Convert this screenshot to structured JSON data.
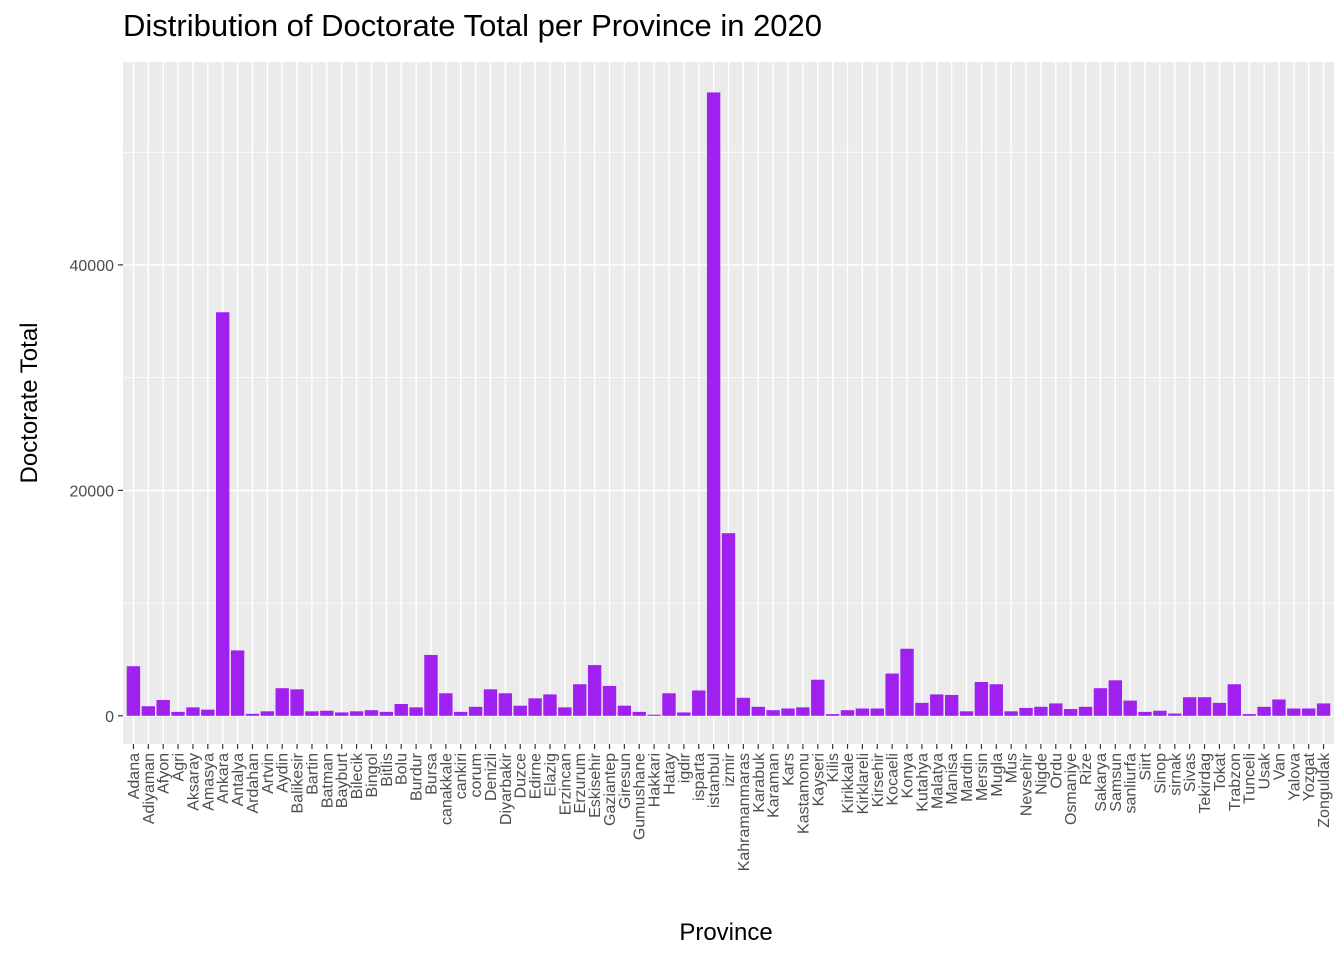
{
  "chart_data": {
    "type": "bar",
    "title": "Distribution of Doctorate Total per Province in 2020",
    "xlabel": "Province",
    "ylabel": "Doctorate Total",
    "ylim": [
      -2500,
      58000
    ],
    "yticks": [
      0,
      20000,
      40000
    ],
    "ytick_labels": [
      "0",
      "20000",
      "40000"
    ],
    "bar_color": "#a020f0",
    "panel_color": "#ebebeb",
    "grid_color": "#ffffff",
    "grid": true,
    "legend": "none",
    "categories": [
      "Adana",
      "Adiyaman",
      "Afyon",
      "Agri",
      "Aksaray",
      "Amasya",
      "Ankara",
      "Antalya",
      "Ardahan",
      "Artvin",
      "Aydin",
      "Balikesir",
      "Bartin",
      "Batman",
      "Bayburt",
      "Bilecik",
      "Bingol",
      "Bitlis",
      "Bolu",
      "Burdur",
      "Bursa",
      "canakkale",
      "cankiri",
      "corum",
      "Denizli",
      "Diyarbakir",
      "Duzce",
      "Edirne",
      "Elazig",
      "Erzincan",
      "Erzurum",
      "Eskisehir",
      "Gaziantep",
      "Giresun",
      "Gumushane",
      "Hakkari",
      "Hatay",
      "igdir",
      "isparta",
      "istanbul",
      "izmir",
      "Kahramanmaras",
      "Karabuk",
      "Karaman",
      "Kars",
      "Kastamonu",
      "Kayseri",
      "Kilis",
      "Kirikkale",
      "Kirklareli",
      "Kirsehir",
      "Kocaeli",
      "Konya",
      "Kutahya",
      "Malatya",
      "Manisa",
      "Mardin",
      "Mersin",
      "Mugla",
      "Mus",
      "Nevsehir",
      "Nigde",
      "Ordu",
      "Osmaniye",
      "Rize",
      "Sakarya",
      "Samsun",
      "sanliurfa",
      "Siirt",
      "Sinop",
      "sirnak",
      "Sivas",
      "Tekirdag",
      "Tokat",
      "Trabzon",
      "Tunceli",
      "Usak",
      "Van",
      "Yalova",
      "Yozgat",
      "Zonguldak"
    ],
    "values": [
      4400,
      850,
      1400,
      350,
      750,
      550,
      35800,
      5800,
      180,
      400,
      2450,
      2350,
      400,
      450,
      300,
      400,
      500,
      350,
      1050,
      750,
      5400,
      2000,
      350,
      800,
      2350,
      2000,
      900,
      1550,
      1900,
      750,
      2800,
      4500,
      2650,
      900,
      350,
      100,
      2000,
      300,
      2250,
      55300,
      16200,
      1600,
      800,
      500,
      650,
      750,
      3200,
      150,
      500,
      650,
      650,
      3750,
      5950,
      1150,
      1900,
      1850,
      400,
      3000,
      2800,
      400,
      700,
      800,
      1100,
      600,
      800,
      2450,
      3150,
      1350,
      350,
      450,
      200,
      1650,
      1650,
      1150,
      2800,
      150,
      800,
      1450,
      650,
      650,
      1100
    ]
  }
}
